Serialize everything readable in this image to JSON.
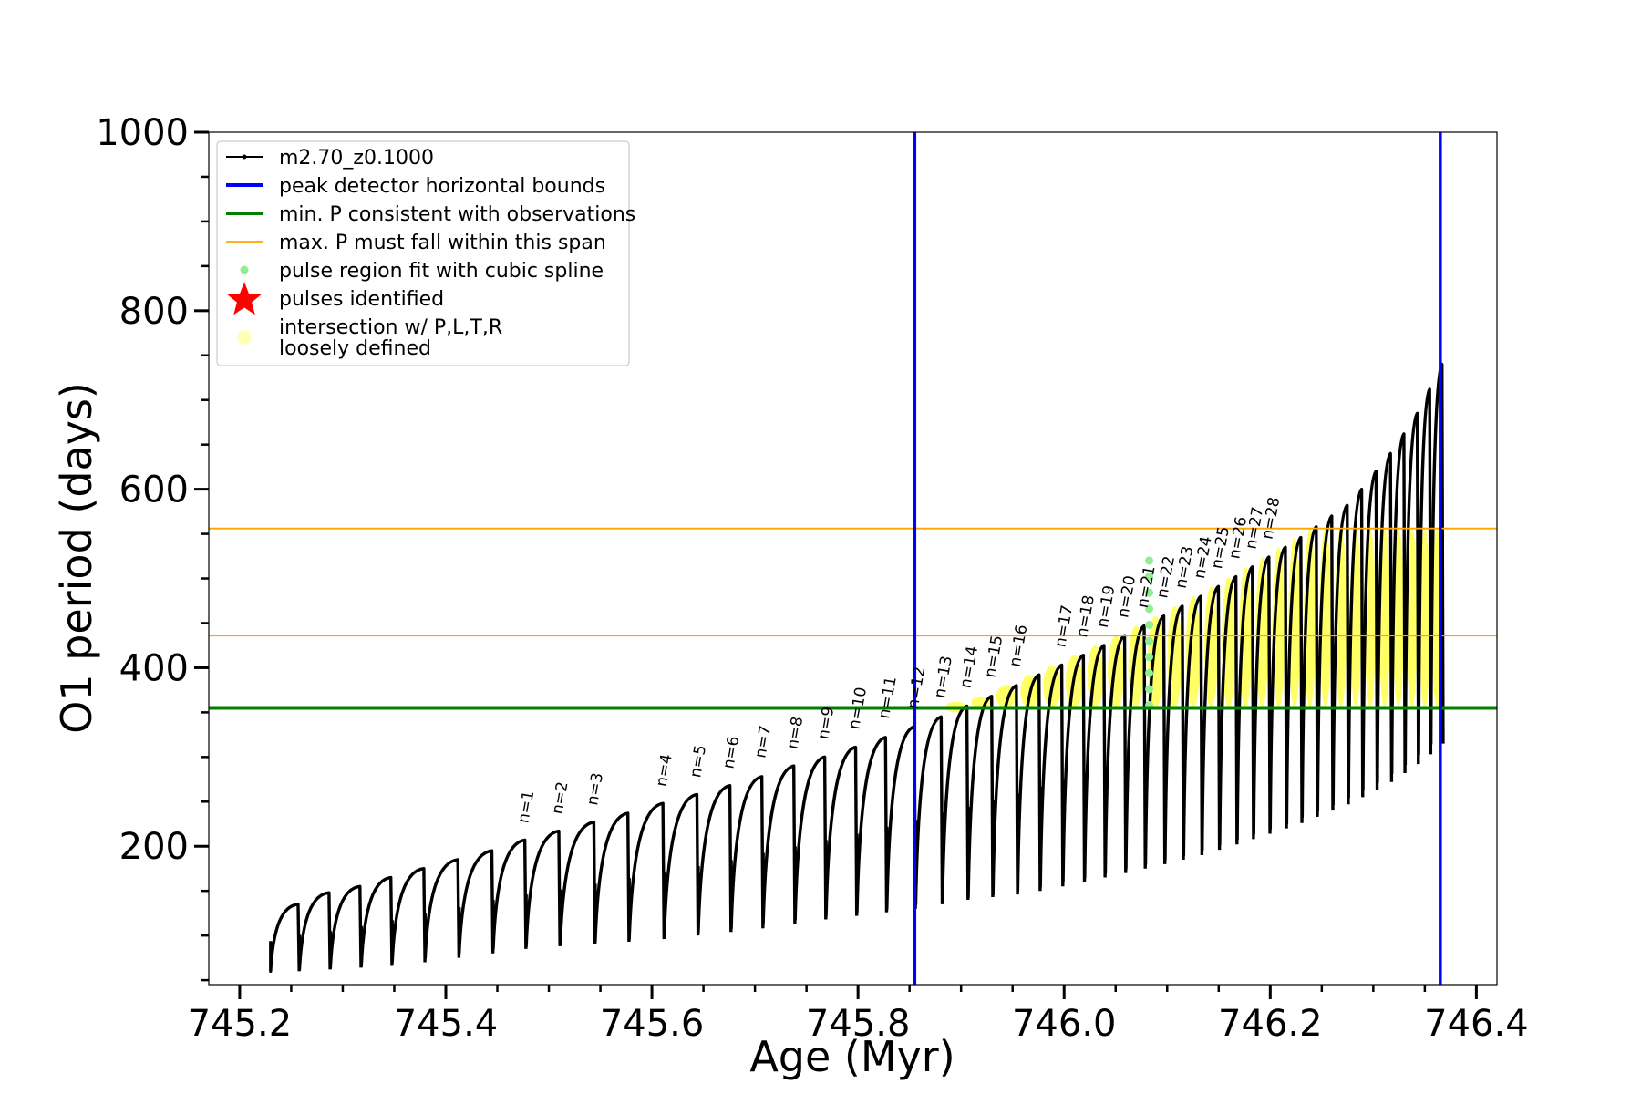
{
  "chart_data": {
    "type": "line",
    "title": "",
    "xlabel": "Age (Myr)",
    "ylabel": "O1 period (days)",
    "xlim": [
      745.17,
      746.42
    ],
    "ylim": [
      45,
      1000
    ],
    "x_ticks": [
      745.2,
      745.4,
      745.6,
      745.8,
      746.0,
      746.2,
      746.4
    ],
    "x_tick_labels": [
      "745.2",
      "745.4",
      "745.6",
      "745.8",
      "746.0",
      "746.2",
      "746.4"
    ],
    "y_ticks": [
      200,
      400,
      600,
      800,
      1000
    ],
    "y_tick_labels": [
      "200",
      "400",
      "600",
      "800",
      "1000"
    ],
    "legend_position": "top-left",
    "legend": [
      {
        "label": "m2.70_z0.1000",
        "kind": "line-marker",
        "color": "#000000"
      },
      {
        "label": "peak detector horizontal bounds",
        "kind": "line",
        "color": "#0000ff"
      },
      {
        "label": "min. P consistent with observations",
        "kind": "line",
        "color": "#008000"
      },
      {
        "label": "max. P must fall within this span",
        "kind": "line",
        "color": "#ffa500"
      },
      {
        "label": "pulse region fit with cubic spline",
        "kind": "dot",
        "color": "#90ee90"
      },
      {
        "label": "pulses identified",
        "kind": "star",
        "color": "#ff0000"
      },
      {
        "label": "intersection w/ P,L,T,R",
        "label2": "loosely defined",
        "kind": "circle",
        "color": "#ffff99"
      }
    ],
    "vertical_lines": [
      {
        "x": 745.855,
        "color": "#0000ff"
      },
      {
        "x": 746.365,
        "color": "#0000ff"
      }
    ],
    "horizontal_lines": [
      {
        "y": 355,
        "color": "#008000"
      },
      {
        "y": 436,
        "color": "#ffa500"
      },
      {
        "y": 556,
        "color": "#ffa500"
      }
    ],
    "pulses": [
      {
        "start": 745.23,
        "min": 60,
        "max": 135,
        "label": ""
      },
      {
        "start": 745.258,
        "min": 62,
        "max": 148,
        "label": ""
      },
      {
        "start": 745.288,
        "min": 64,
        "max": 155,
        "label": ""
      },
      {
        "start": 745.318,
        "min": 66,
        "max": 165,
        "label": ""
      },
      {
        "start": 745.348,
        "min": 70,
        "max": 175,
        "label": ""
      },
      {
        "start": 745.38,
        "min": 75,
        "max": 185,
        "label": ""
      },
      {
        "start": 745.413,
        "min": 80,
        "max": 195,
        "label": ""
      },
      {
        "start": 745.446,
        "min": 85,
        "max": 207,
        "label": ""
      },
      {
        "start": 745.478,
        "min": 88,
        "max": 217,
        "label": "n=1"
      },
      {
        "start": 745.511,
        "min": 90,
        "max": 227,
        "label": "n=2"
      },
      {
        "start": 745.545,
        "min": 93,
        "max": 237,
        "label": "n=3"
      },
      {
        "start": 745.578,
        "min": 96,
        "max": 248,
        "label": ""
      },
      {
        "start": 745.612,
        "min": 100,
        "max": 258,
        "label": "n=4"
      },
      {
        "start": 745.645,
        "min": 104,
        "max": 268,
        "label": "n=5"
      },
      {
        "start": 745.677,
        "min": 108,
        "max": 278,
        "label": "n=6"
      },
      {
        "start": 745.708,
        "min": 113,
        "max": 290,
        "label": "n=7"
      },
      {
        "start": 745.739,
        "min": 118,
        "max": 300,
        "label": "n=8"
      },
      {
        "start": 745.769,
        "min": 122,
        "max": 311,
        "label": "n=9"
      },
      {
        "start": 745.799,
        "min": 126,
        "max": 322,
        "label": "n=10"
      },
      {
        "start": 745.828,
        "min": 130,
        "max": 334,
        "label": "n=11"
      },
      {
        "start": 745.856,
        "min": 135,
        "max": 345,
        "label": "n=12"
      },
      {
        "start": 745.882,
        "min": 140,
        "max": 357,
        "label": "n=13"
      },
      {
        "start": 745.907,
        "min": 143,
        "max": 368,
        "label": "n=14"
      },
      {
        "start": 745.931,
        "min": 146,
        "max": 380,
        "label": "n=15"
      },
      {
        "start": 745.955,
        "min": 150,
        "max": 392,
        "label": "n=16"
      },
      {
        "start": 745.977,
        "min": 155,
        "max": 403,
        "label": ""
      },
      {
        "start": 745.999,
        "min": 160,
        "max": 414,
        "label": "n=17"
      },
      {
        "start": 746.02,
        "min": 165,
        "max": 425,
        "label": "n=18"
      },
      {
        "start": 746.04,
        "min": 170,
        "max": 436,
        "label": "n=19"
      },
      {
        "start": 746.06,
        "min": 175,
        "max": 447,
        "label": "n=20"
      },
      {
        "start": 746.079,
        "min": 180,
        "max": 458,
        "label": "n=21"
      },
      {
        "start": 746.098,
        "min": 185,
        "max": 469,
        "label": "n=22"
      },
      {
        "start": 746.116,
        "min": 190,
        "max": 480,
        "label": "n=23"
      },
      {
        "start": 746.134,
        "min": 196,
        "max": 491,
        "label": "n=24"
      },
      {
        "start": 746.151,
        "min": 202,
        "max": 502,
        "label": "n=25"
      },
      {
        "start": 746.168,
        "min": 208,
        "max": 513,
        "label": "n=26"
      },
      {
        "start": 746.184,
        "min": 214,
        "max": 524,
        "label": "n=27"
      },
      {
        "start": 746.2,
        "min": 220,
        "max": 535,
        "label": "n=28"
      },
      {
        "start": 746.216,
        "min": 226,
        "max": 546,
        "label": ""
      },
      {
        "start": 746.231,
        "min": 233,
        "max": 558,
        "label": ""
      },
      {
        "start": 746.246,
        "min": 240,
        "max": 570,
        "label": ""
      },
      {
        "start": 746.261,
        "min": 247,
        "max": 582,
        "label": ""
      },
      {
        "start": 746.276,
        "min": 255,
        "max": 600,
        "label": ""
      },
      {
        "start": 746.29,
        "min": 263,
        "max": 620,
        "label": ""
      },
      {
        "start": 746.304,
        "min": 272,
        "max": 640,
        "label": ""
      },
      {
        "start": 746.318,
        "min": 282,
        "max": 662,
        "label": ""
      },
      {
        "start": 746.331,
        "min": 292,
        "max": 685,
        "label": ""
      },
      {
        "start": 746.344,
        "min": 303,
        "max": 712,
        "label": ""
      },
      {
        "start": 746.356,
        "min": 315,
        "max": 740,
        "label": ""
      }
    ]
  }
}
